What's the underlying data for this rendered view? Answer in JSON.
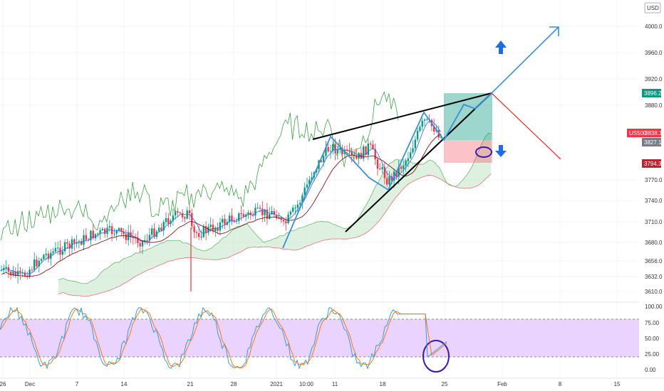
{
  "currency_badge": "USD",
  "price_axis": {
    "ticks": [
      "4000.0",
      "3960.0",
      "3920.0",
      "3880.0",
      "3770.0",
      "3740.0",
      "3710.0",
      "3680.0",
      "3656.0",
      "3632.0",
      "3610.0"
    ],
    "values": [
      4000,
      3960,
      3920,
      3880,
      3770,
      3740,
      3710,
      3680,
      3656,
      3632,
      3610
    ]
  },
  "price_tags": {
    "target_top": "3896.2",
    "symbol": "US500",
    "current": "3838.1",
    "entry": "3827.1",
    "stop": "3794.3",
    "colors": {
      "target": "#089981",
      "symbol": "#f23645",
      "entry": "#787b86",
      "stop": "#b22833"
    }
  },
  "stoch_axis": {
    "ticks": [
      "100.00",
      "75.00",
      "50.00",
      "25.00",
      "0.00"
    ],
    "values": [
      100,
      75,
      50,
      25,
      0
    ]
  },
  "time_axis": [
    "26",
    "Dec",
    "7",
    "14",
    "21",
    "28",
    "2021",
    "10:00",
    "11",
    "18",
    "25",
    "Feb",
    "8",
    "15"
  ],
  "colors": {
    "up_candle": "#089981",
    "down_candle": "#f23645",
    "tenkan": "#2962ff",
    "kijun": "#801922",
    "lagging": "#43a047",
    "cloud": "#c8e6c9",
    "wedge": "#000000",
    "zigzag": "#3c8fd6",
    "stoch_band": "#e6ccff"
  },
  "chart_data": {
    "type": "candlestick",
    "symbol": "US500",
    "currency": "USD",
    "x_labels": [
      "26",
      "Dec",
      "7",
      "14",
      "21",
      "28",
      "2021",
      "10:00",
      "11",
      "18",
      "25",
      "Feb",
      "8",
      "15"
    ],
    "price_range": [
      3600,
      4015
    ],
    "last_price": 3838.1,
    "position": {
      "target": 3896.2,
      "entry": 3827.1,
      "stop": 3794.3
    },
    "indicators": [
      "Ichimoku Cloud",
      "Stochastic"
    ],
    "stochastic_levels": [
      100,
      75,
      50,
      25,
      0
    ]
  }
}
